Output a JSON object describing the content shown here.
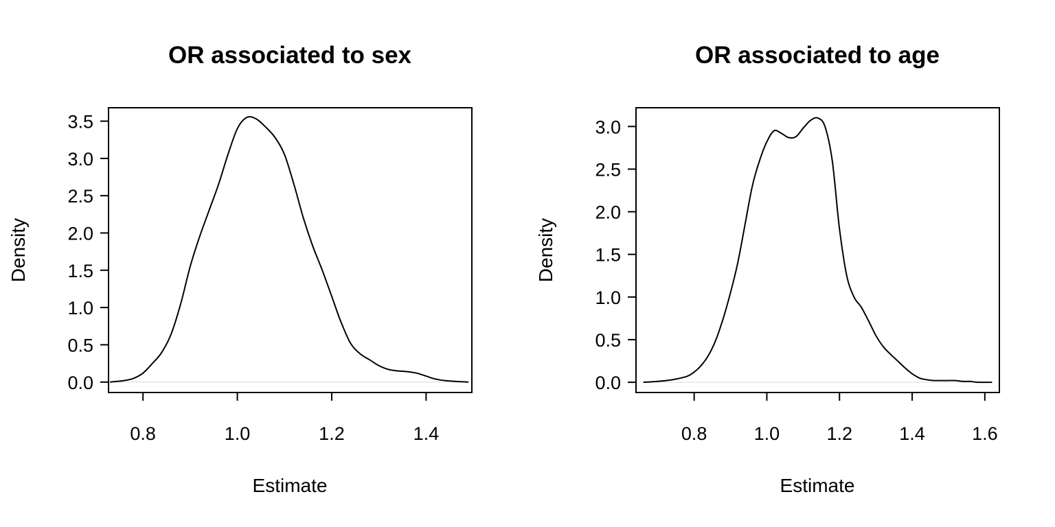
{
  "chart_data": [
    {
      "type": "line",
      "title": "OR associated to sex",
      "xlabel": "Estimate",
      "ylabel": "Density",
      "xlim": [
        0.727,
        1.497
      ],
      "ylim": [
        -0.14,
        3.68
      ],
      "xticks": [
        0.8,
        1.0,
        1.2,
        1.4
      ],
      "xtick_labels": [
        "0.8",
        "1.0",
        "1.2",
        "1.4"
      ],
      "yticks": [
        0.0,
        0.5,
        1.0,
        1.5,
        2.0,
        2.5,
        3.0,
        3.5
      ],
      "ytick_labels": [
        "0.0",
        "0.5",
        "1.0",
        "1.5",
        "2.0",
        "2.5",
        "3.0",
        "3.5"
      ],
      "grid": false,
      "series": [
        {
          "x": [
            0.73,
            0.76,
            0.78,
            0.8,
            0.82,
            0.84,
            0.86,
            0.88,
            0.9,
            0.92,
            0.94,
            0.96,
            0.98,
            1.0,
            1.02,
            1.04,
            1.06,
            1.08,
            1.1,
            1.12,
            1.14,
            1.16,
            1.18,
            1.2,
            1.22,
            1.24,
            1.26,
            1.28,
            1.3,
            1.32,
            1.34,
            1.36,
            1.38,
            1.4,
            1.42,
            1.44,
            1.46,
            1.49
          ],
          "y": [
            0.0,
            0.02,
            0.05,
            0.12,
            0.25,
            0.4,
            0.65,
            1.05,
            1.55,
            1.95,
            2.3,
            2.65,
            3.05,
            3.4,
            3.55,
            3.53,
            3.42,
            3.28,
            3.05,
            2.65,
            2.2,
            1.82,
            1.5,
            1.15,
            0.8,
            0.52,
            0.38,
            0.3,
            0.22,
            0.17,
            0.15,
            0.14,
            0.12,
            0.08,
            0.04,
            0.02,
            0.01,
            0.0
          ]
        }
      ]
    },
    {
      "type": "line",
      "title": "OR associated to age",
      "xlabel": "Estimate",
      "ylabel": "Density",
      "xlim": [
        0.64,
        1.64
      ],
      "ylim": [
        -0.12,
        3.22
      ],
      "xticks": [
        0.8,
        1.0,
        1.2,
        1.4,
        1.6
      ],
      "xtick_labels": [
        "0.8",
        "1.0",
        "1.2",
        "1.4",
        "1.6"
      ],
      "yticks": [
        0.0,
        0.5,
        1.0,
        1.5,
        2.0,
        2.5,
        3.0
      ],
      "ytick_labels": [
        "0.0",
        "0.5",
        "1.0",
        "1.5",
        "2.0",
        "2.5",
        "3.0"
      ],
      "grid": false,
      "series": [
        {
          "x": [
            0.66,
            0.7,
            0.74,
            0.78,
            0.8,
            0.82,
            0.84,
            0.86,
            0.88,
            0.9,
            0.92,
            0.94,
            0.96,
            0.98,
            1.0,
            1.02,
            1.04,
            1.06,
            1.08,
            1.1,
            1.12,
            1.14,
            1.16,
            1.18,
            1.2,
            1.22,
            1.24,
            1.26,
            1.28,
            1.3,
            1.32,
            1.34,
            1.36,
            1.38,
            1.4,
            1.42,
            1.44,
            1.46,
            1.48,
            1.5,
            1.52,
            1.54,
            1.56,
            1.58,
            1.62
          ],
          "y": [
            0.0,
            0.01,
            0.03,
            0.07,
            0.12,
            0.2,
            0.32,
            0.5,
            0.75,
            1.05,
            1.4,
            1.85,
            2.3,
            2.6,
            2.82,
            2.95,
            2.92,
            2.87,
            2.88,
            2.98,
            3.07,
            3.1,
            3.0,
            2.6,
            1.8,
            1.25,
            1.0,
            0.88,
            0.72,
            0.55,
            0.42,
            0.33,
            0.25,
            0.17,
            0.1,
            0.05,
            0.03,
            0.02,
            0.02,
            0.02,
            0.02,
            0.01,
            0.01,
            0.0,
            0.0
          ]
        }
      ]
    }
  ]
}
